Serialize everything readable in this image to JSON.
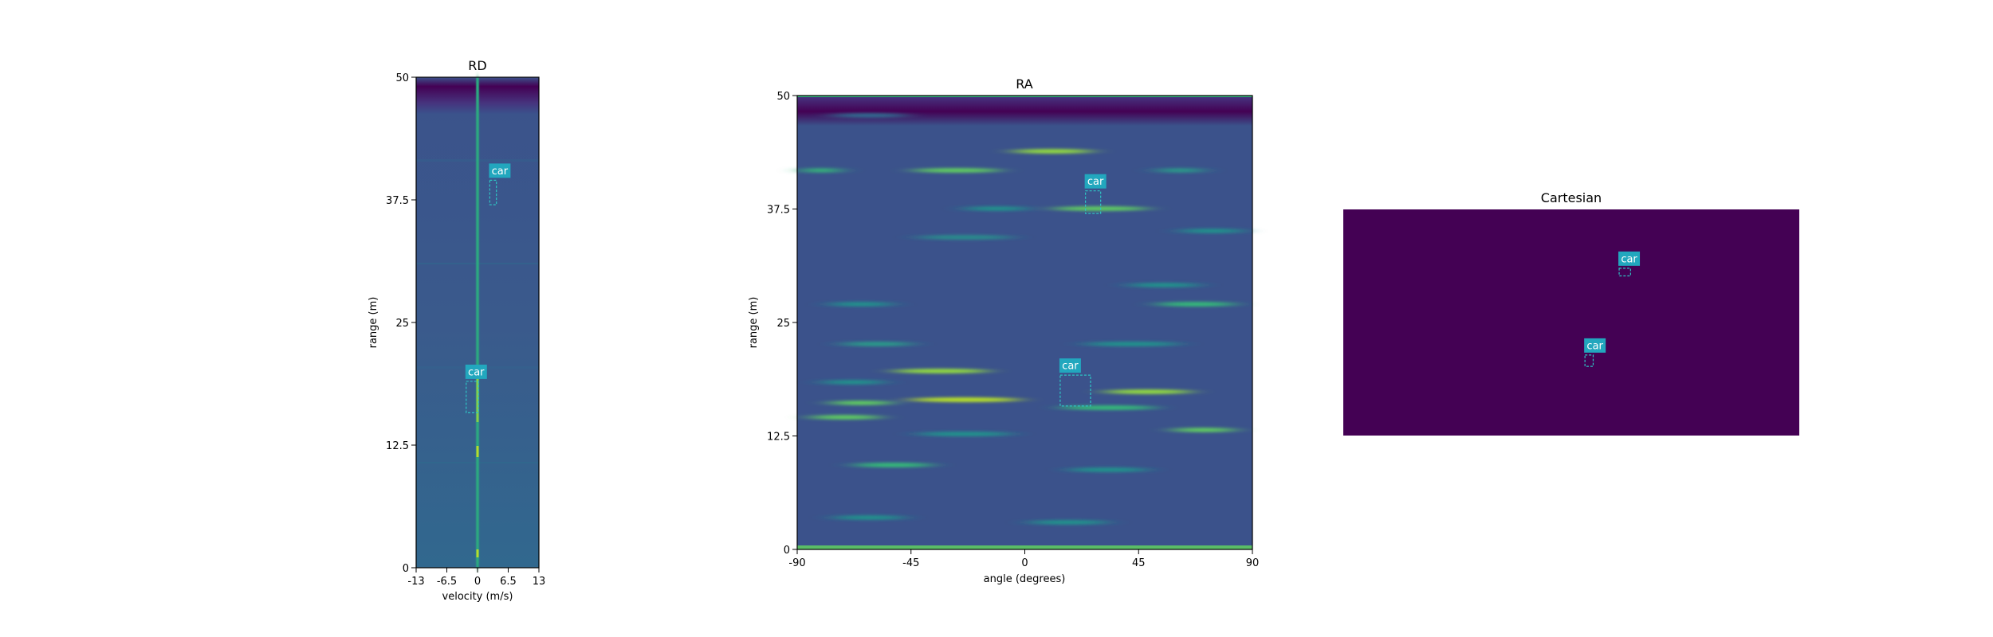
{
  "colors": {
    "viridis_dark": "#440154",
    "viridis_navy": "#3b528b",
    "viridis_blue": "#31688e",
    "viridis_teal": "#21918c",
    "viridis_green": "#35b779",
    "viridis_yellow": "#fde725",
    "box": "#2ec4c4",
    "label_bg": "#22a7be",
    "label_text": "#ffffff"
  },
  "chart_data": [
    {
      "type": "heatmap",
      "title": "RD",
      "xlabel": "velocity (m/s)",
      "ylabel": "range (m)",
      "xlim": [
        -13,
        13
      ],
      "ylim": [
        0,
        50
      ],
      "xticks": [
        -13,
        -6.5,
        0,
        6.5,
        13
      ],
      "xtick_labels": [
        "-13",
        "-6.5",
        "0",
        "6.5",
        "13"
      ],
      "yticks": [
        0,
        12.5,
        25,
        37.5,
        50
      ],
      "ytick_labels": [
        "0",
        "12.5",
        "25",
        "37.5",
        "50"
      ],
      "colormap": "viridis",
      "grid": false,
      "detections": [
        {
          "label": "car",
          "x": [
            2.6,
            4.0
          ],
          "y": [
            37.0,
            39.5
          ]
        },
        {
          "label": "car",
          "x": [
            -2.4,
            0.2
          ],
          "y": [
            15.8,
            19.0
          ]
        }
      ]
    },
    {
      "type": "heatmap",
      "title": "RA",
      "xlabel": "angle (degrees)",
      "ylabel": "range (m)",
      "xlim": [
        -90,
        90
      ],
      "ylim": [
        0,
        50
      ],
      "xticks": [
        -90,
        -45,
        0,
        45,
        90
      ],
      "xtick_labels": [
        "-90",
        "-45",
        "0",
        "45",
        "90"
      ],
      "yticks": [
        0,
        12.5,
        25,
        37.5,
        50
      ],
      "ytick_labels": [
        "0",
        "12.5",
        "25",
        "37.5",
        "50"
      ],
      "colormap": "viridis",
      "grid": false,
      "detections": [
        {
          "label": "car",
          "x": [
            24,
            30
          ],
          "y": [
            37.0,
            39.5
          ]
        },
        {
          "label": "car",
          "x": [
            14,
            26
          ],
          "y": [
            15.8,
            19.2
          ]
        }
      ]
    },
    {
      "type": "heatmap",
      "title": "Cartesian",
      "xlabel": "",
      "ylabel": "",
      "axes_visible": false,
      "xlim": [
        0,
        100
      ],
      "ylim": [
        0,
        50
      ],
      "colormap": "viridis",
      "detections": [
        {
          "label": "car",
          "x": [
            60.5,
            63.0
          ],
          "y": [
            35.3,
            37.0
          ]
        },
        {
          "label": "car",
          "x": [
            53.0,
            54.8
          ],
          "y": [
            15.3,
            17.8
          ]
        }
      ]
    }
  ]
}
